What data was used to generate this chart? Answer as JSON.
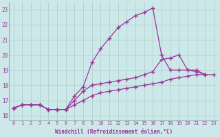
{
  "x_values": [
    0,
    1,
    2,
    3,
    4,
    5,
    6,
    7,
    8,
    9,
    10,
    11,
    12,
    13,
    14,
    15,
    16,
    17,
    18,
    19,
    20,
    21,
    22,
    23
  ],
  "line1": [
    16.5,
    16.7,
    16.7,
    16.7,
    16.4,
    16.4,
    16.4,
    17.3,
    17.9,
    19.5,
    20.4,
    21.1,
    21.8,
    22.2,
    22.6,
    22.8,
    23.1,
    20.0,
    19.0,
    19.0,
    19.0,
    18.9,
    18.7,
    null
  ],
  "line2": [
    16.5,
    16.7,
    16.7,
    16.7,
    16.4,
    16.4,
    16.4,
    17.0,
    17.6,
    18.0,
    18.1,
    18.2,
    18.3,
    18.4,
    18.5,
    18.7,
    18.9,
    19.7,
    19.8,
    20.0,
    19.0,
    19.0,
    18.7,
    null
  ],
  "line3": [
    16.5,
    16.7,
    16.7,
    16.7,
    16.4,
    16.4,
    16.4,
    16.7,
    17.0,
    17.3,
    17.5,
    17.6,
    17.7,
    17.8,
    17.9,
    18.0,
    18.1,
    18.2,
    18.4,
    18.5,
    18.6,
    18.7,
    18.7,
    18.7
  ],
  "line_color": "#993399",
  "bg_color": "#cce8e8",
  "grid_color": "#aacccc",
  "xlabel": "Windchill (Refroidissement éolien,°C)",
  "ylabel_ticks": [
    16,
    17,
    18,
    19,
    20,
    21,
    22,
    23
  ],
  "xlim": [
    -0.5,
    23.5
  ],
  "ylim": [
    15.7,
    23.5
  ],
  "marker": "+",
  "marker_size": 4,
  "linewidth": 0.9,
  "title": ""
}
